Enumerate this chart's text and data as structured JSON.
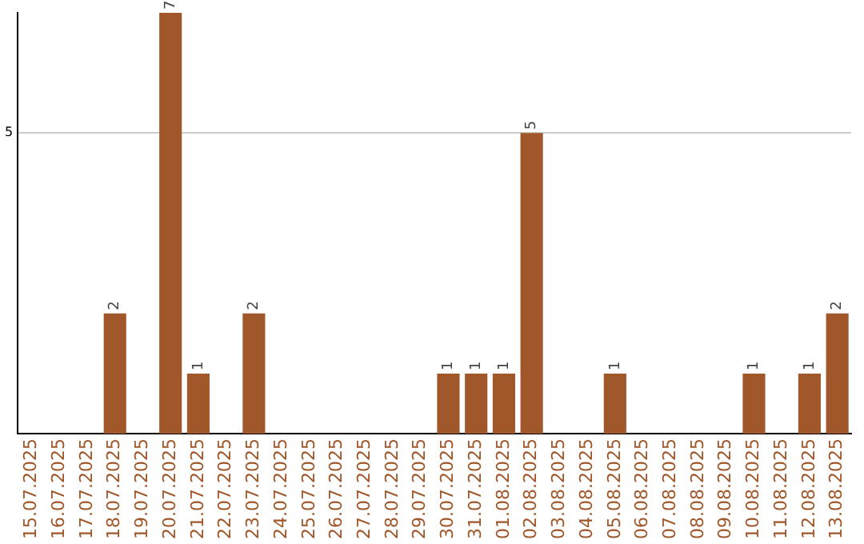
{
  "chart_data": {
    "type": "bar",
    "categories": [
      "15.07.2025",
      "16.07.2025",
      "17.07.2025",
      "18.07.2025",
      "19.07.2025",
      "20.07.2025",
      "21.07.2025",
      "22.07.2025",
      "23.07.2025",
      "24.07.2025",
      "25.07.2025",
      "26.07.2025",
      "27.07.2025",
      "28.07.2025",
      "29.07.2025",
      "30.07.2025",
      "31.07.2025",
      "01.08.2025",
      "02.08.2025",
      "03.08.2025",
      "04.08.2025",
      "05.08.2025",
      "06.08.2025",
      "07.08.2025",
      "08.08.2025",
      "09.08.2025",
      "10.08.2025",
      "11.08.2025",
      "12.08.2025",
      "13.08.2025"
    ],
    "values": [
      null,
      null,
      null,
      2,
      null,
      7,
      1,
      null,
      2,
      null,
      null,
      null,
      null,
      null,
      null,
      1,
      1,
      1,
      5,
      null,
      null,
      1,
      null,
      null,
      null,
      null,
      1,
      null,
      1,
      2
    ],
    "color": "#a0572a",
    "ylim": [
      0,
      7
    ],
    "yticks": [
      5
    ],
    "grid": "y",
    "data_labels": true
  }
}
